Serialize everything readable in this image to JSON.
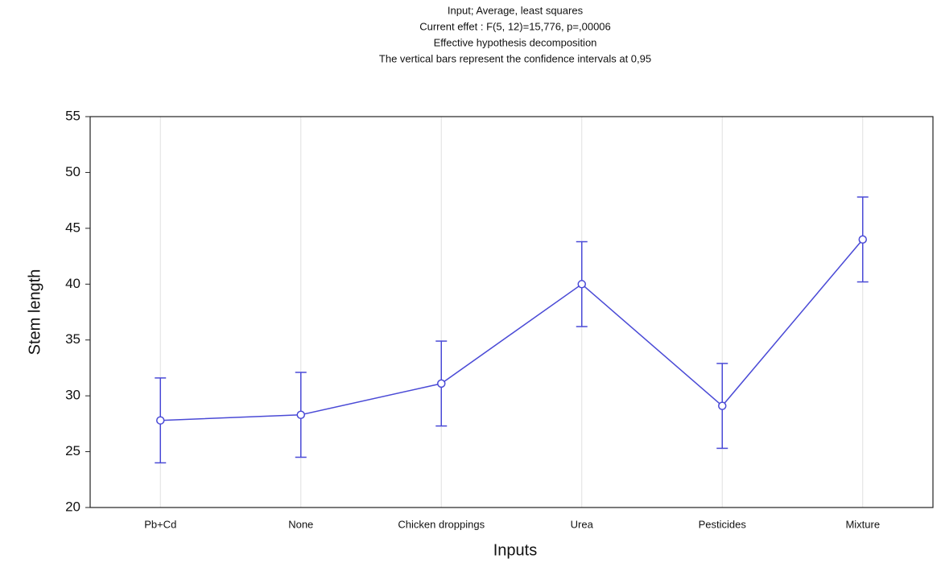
{
  "chart_data": {
    "type": "line",
    "title": "Input; Average, least squares",
    "subtitle": [
      "Current effet : F(5, 12)=15,776, p=,00006",
      "Effective hypothesis decomposition",
      "The vertical bars represent the confidence intervals at 0,95"
    ],
    "x_label": "Inputs",
    "y_label": "Stem length",
    "categories": [
      "Pb+Cd",
      "None",
      "Chicken droppings",
      "Urea",
      "Pesticides",
      "Mixture"
    ],
    "values": [
      27.8,
      28.3,
      31.1,
      40.0,
      29.1,
      44.0
    ],
    "errors": [
      3.8,
      3.8,
      3.8,
      3.8,
      3.8,
      3.8
    ],
    "color": "#4a4ad6",
    "ylim": [
      20,
      55
    ],
    "yticks": [
      20,
      25,
      30,
      35,
      40,
      45,
      50,
      55
    ],
    "grid": true
  }
}
